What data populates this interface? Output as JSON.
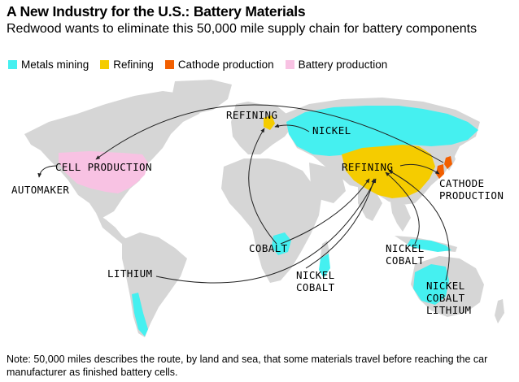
{
  "header": {
    "title": "A New Industry for the U.S.: Battery Materials",
    "subtitle": "Redwood wants to eliminate this 50,000 mile supply chain for battery components"
  },
  "legend": [
    {
      "label": "Metals mining",
      "color": "#45f0f0"
    },
    {
      "label": "Refining",
      "color": "#f5cc00"
    },
    {
      "label": "Cathode production",
      "color": "#f25f00"
    },
    {
      "label": "Battery production",
      "color": "#f8c2e3"
    }
  ],
  "colors": {
    "land": "#d6d6d6",
    "mining": "#45f0f0",
    "refining": "#f5cc00",
    "cathode": "#f25f00",
    "battery": "#f8c2e3",
    "route": "#222222"
  },
  "labels": {
    "refining_europe": "REFINING",
    "nickel_russia": "NICKEL",
    "cell_production": "CELL PRODUCTION",
    "automaker": "AUTOMAKER",
    "refining_china": "REFINING",
    "cathode_line1": "CATHODE",
    "cathode_line2": "PRODUCTION",
    "cobalt_congo": "COBALT",
    "nickel_se_asia_line1": "NICKEL",
    "nickel_se_asia_line2": "COBALT",
    "nickel_africa_line1": "NICKEL",
    "nickel_africa_line2": "COBALT",
    "lithium_south_america": "LITHIUM",
    "australia_line1": "NICKEL",
    "australia_line2": "COBALT",
    "australia_line3": "LITHIUM"
  },
  "footer": {
    "note": "Note: 50,000 miles describes the route, by land and sea, that some materials travel before reaching the car manufacturer as finished battery cells."
  }
}
